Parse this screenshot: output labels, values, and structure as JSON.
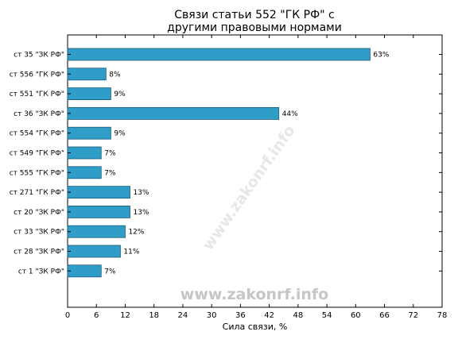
{
  "colors": {
    "bar_fill": "#2e9ec8",
    "bar_stroke": "#1b5a78",
    "axis": "#000000",
    "watermark": "#c6c6c6"
  },
  "watermark": {
    "main": "www.zakonrf.info",
    "diagonal": "www.zakonrf.info"
  },
  "chart_data": {
    "type": "bar",
    "orientation": "horizontal",
    "title": [
      "Связи статьи 552 \"ГК РФ\" с",
      "другими правовыми нормами"
    ],
    "xlabel": "Сила связи, %",
    "ylabel": "",
    "xlim": [
      0,
      78
    ],
    "xticks": [
      0,
      6,
      12,
      18,
      24,
      30,
      36,
      42,
      48,
      54,
      60,
      66,
      72,
      78
    ],
    "grid": false,
    "categories": [
      "ст 35 \"ЗК РФ\"",
      "ст 556 \"ГК РФ\"",
      "ст 551 \"ГК РФ\"",
      "ст 36 \"ЗК РФ\"",
      "ст 554 \"ГК РФ\"",
      "ст 549 \"ГК РФ\"",
      "ст 555 \"ГК РФ\"",
      "ст 271 \"ГК РФ\"",
      "ст 20 \"ЗК РФ\"",
      "ст 33 \"ЗК РФ\"",
      "ст 28 \"ЗК РФ\"",
      "ст 1 \"ЗК РФ\""
    ],
    "values": [
      63,
      8,
      9,
      44,
      9,
      7,
      7,
      13,
      13,
      12,
      11,
      7
    ],
    "value_labels": [
      "63%",
      "8%",
      "9%",
      "44%",
      "9%",
      "7%",
      "7%",
      "13%",
      "13%",
      "12%",
      "11%",
      "7%"
    ]
  }
}
